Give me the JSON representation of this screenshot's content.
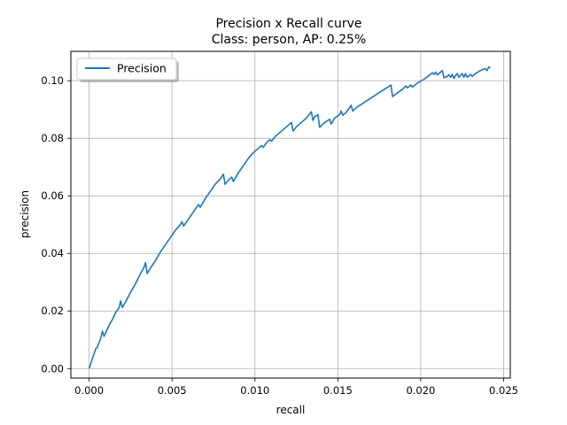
{
  "chart_data": {
    "type": "line",
    "title": "Precision x Recall curve",
    "subtitle": "Class: person, AP: 0.25%",
    "xlabel": "recall",
    "ylabel": "precision",
    "xlim": [
      -0.0011,
      0.0254
    ],
    "ylim": [
      -0.0033,
      0.1102
    ],
    "xticks": [
      0.0,
      0.005,
      0.01,
      0.015,
      0.02,
      0.025
    ],
    "xtick_labels": [
      "0.000",
      "0.005",
      "0.010",
      "0.015",
      "0.020",
      "0.025"
    ],
    "yticks": [
      0.0,
      0.02,
      0.04,
      0.06,
      0.08,
      0.1
    ],
    "ytick_labels": [
      "0.00",
      "0.02",
      "0.04",
      "0.06",
      "0.08",
      "0.10"
    ],
    "grid": true,
    "legend": {
      "position": "top-left"
    },
    "colors": {
      "series": "#1f77b4",
      "grid": "#b0b0b0"
    },
    "series": [
      {
        "name": "Precision",
        "points": [
          [
            0.0,
            0.0
          ],
          [
            0.0002,
            0.0035
          ],
          [
            0.0004,
            0.0068
          ],
          [
            0.0005,
            0.0075
          ],
          [
            0.0006,
            0.009
          ],
          [
            0.0007,
            0.0105
          ],
          [
            0.0008,
            0.013
          ],
          [
            0.0009,
            0.0112
          ],
          [
            0.001,
            0.0125
          ],
          [
            0.0012,
            0.015
          ],
          [
            0.0014,
            0.017
          ],
          [
            0.0016,
            0.0195
          ],
          [
            0.0018,
            0.021
          ],
          [
            0.0019,
            0.0235
          ],
          [
            0.002,
            0.0212
          ],
          [
            0.0022,
            0.0232
          ],
          [
            0.0025,
            0.0265
          ],
          [
            0.0028,
            0.0295
          ],
          [
            0.0031,
            0.033
          ],
          [
            0.0033,
            0.035
          ],
          [
            0.0034,
            0.0368
          ],
          [
            0.0035,
            0.033
          ],
          [
            0.0037,
            0.035
          ],
          [
            0.0038,
            0.0358
          ],
          [
            0.004,
            0.0375
          ],
          [
            0.0043,
            0.0405
          ],
          [
            0.0046,
            0.043
          ],
          [
            0.0049,
            0.0455
          ],
          [
            0.0052,
            0.048
          ],
          [
            0.0055,
            0.05
          ],
          [
            0.0056,
            0.051
          ],
          [
            0.0057,
            0.0495
          ],
          [
            0.006,
            0.052
          ],
          [
            0.0063,
            0.0545
          ],
          [
            0.0066,
            0.057
          ],
          [
            0.0067,
            0.056
          ],
          [
            0.007,
            0.059
          ],
          [
            0.0073,
            0.0615
          ],
          [
            0.0076,
            0.064
          ],
          [
            0.0079,
            0.0658
          ],
          [
            0.0081,
            0.0675
          ],
          [
            0.0082,
            0.064
          ],
          [
            0.0084,
            0.0655
          ],
          [
            0.0086,
            0.0665
          ],
          [
            0.0087,
            0.065
          ],
          [
            0.009,
            0.068
          ],
          [
            0.0093,
            0.0705
          ],
          [
            0.0096,
            0.073
          ],
          [
            0.0099,
            0.075
          ],
          [
            0.0102,
            0.0765
          ],
          [
            0.0104,
            0.0775
          ],
          [
            0.0105,
            0.0768
          ],
          [
            0.0107,
            0.0785
          ],
          [
            0.0109,
            0.0795
          ],
          [
            0.011,
            0.079
          ],
          [
            0.0112,
            0.0805
          ],
          [
            0.0115,
            0.082
          ],
          [
            0.0118,
            0.0835
          ],
          [
            0.0122,
            0.0855
          ],
          [
            0.0123,
            0.0825
          ],
          [
            0.0125,
            0.084
          ],
          [
            0.0128,
            0.0855
          ],
          [
            0.0131,
            0.087
          ],
          [
            0.0134,
            0.0892
          ],
          [
            0.0135,
            0.0862
          ],
          [
            0.0136,
            0.0875
          ],
          [
            0.0138,
            0.0882
          ],
          [
            0.0139,
            0.0838
          ],
          [
            0.0141,
            0.085
          ],
          [
            0.0143,
            0.0858
          ],
          [
            0.0145,
            0.0866
          ],
          [
            0.0146,
            0.085
          ],
          [
            0.0148,
            0.087
          ],
          [
            0.015,
            0.0878
          ],
          [
            0.0151,
            0.0882
          ],
          [
            0.0152,
            0.0895
          ],
          [
            0.0153,
            0.088
          ],
          [
            0.0155,
            0.089
          ],
          [
            0.0157,
            0.0905
          ],
          [
            0.0158,
            0.0915
          ],
          [
            0.0159,
            0.0895
          ],
          [
            0.0162,
            0.091
          ],
          [
            0.0166,
            0.0925
          ],
          [
            0.017,
            0.094
          ],
          [
            0.0174,
            0.0955
          ],
          [
            0.0178,
            0.097
          ],
          [
            0.0182,
            0.0985
          ],
          [
            0.0183,
            0.0945
          ],
          [
            0.0186,
            0.0958
          ],
          [
            0.0189,
            0.097
          ],
          [
            0.0191,
            0.0982
          ],
          [
            0.0192,
            0.0975
          ],
          [
            0.0194,
            0.0985
          ],
          [
            0.0195,
            0.0978
          ],
          [
            0.0198,
            0.0992
          ],
          [
            0.0202,
            0.1005
          ],
          [
            0.0205,
            0.1018
          ],
          [
            0.0207,
            0.1028
          ],
          [
            0.0208,
            0.1022
          ],
          [
            0.0209,
            0.103
          ],
          [
            0.021,
            0.102
          ],
          [
            0.0212,
            0.103
          ],
          [
            0.0213,
            0.1035
          ],
          [
            0.0214,
            0.101
          ],
          [
            0.0216,
            0.1015
          ],
          [
            0.0217,
            0.102
          ],
          [
            0.0218,
            0.1012
          ],
          [
            0.0219,
            0.1022
          ],
          [
            0.022,
            0.1008
          ],
          [
            0.0221,
            0.1018
          ],
          [
            0.0222,
            0.1025
          ],
          [
            0.0223,
            0.1012
          ],
          [
            0.0225,
            0.1025
          ],
          [
            0.0226,
            0.1012
          ],
          [
            0.0227,
            0.1025
          ],
          [
            0.0228,
            0.1012
          ],
          [
            0.023,
            0.1022
          ],
          [
            0.0231,
            0.1015
          ],
          [
            0.0233,
            0.1025
          ],
          [
            0.0235,
            0.1032
          ],
          [
            0.0237,
            0.1038
          ],
          [
            0.0239,
            0.1042
          ],
          [
            0.024,
            0.1035
          ],
          [
            0.0241,
            0.1048
          ],
          [
            0.0242,
            0.1045
          ]
        ]
      }
    ]
  }
}
